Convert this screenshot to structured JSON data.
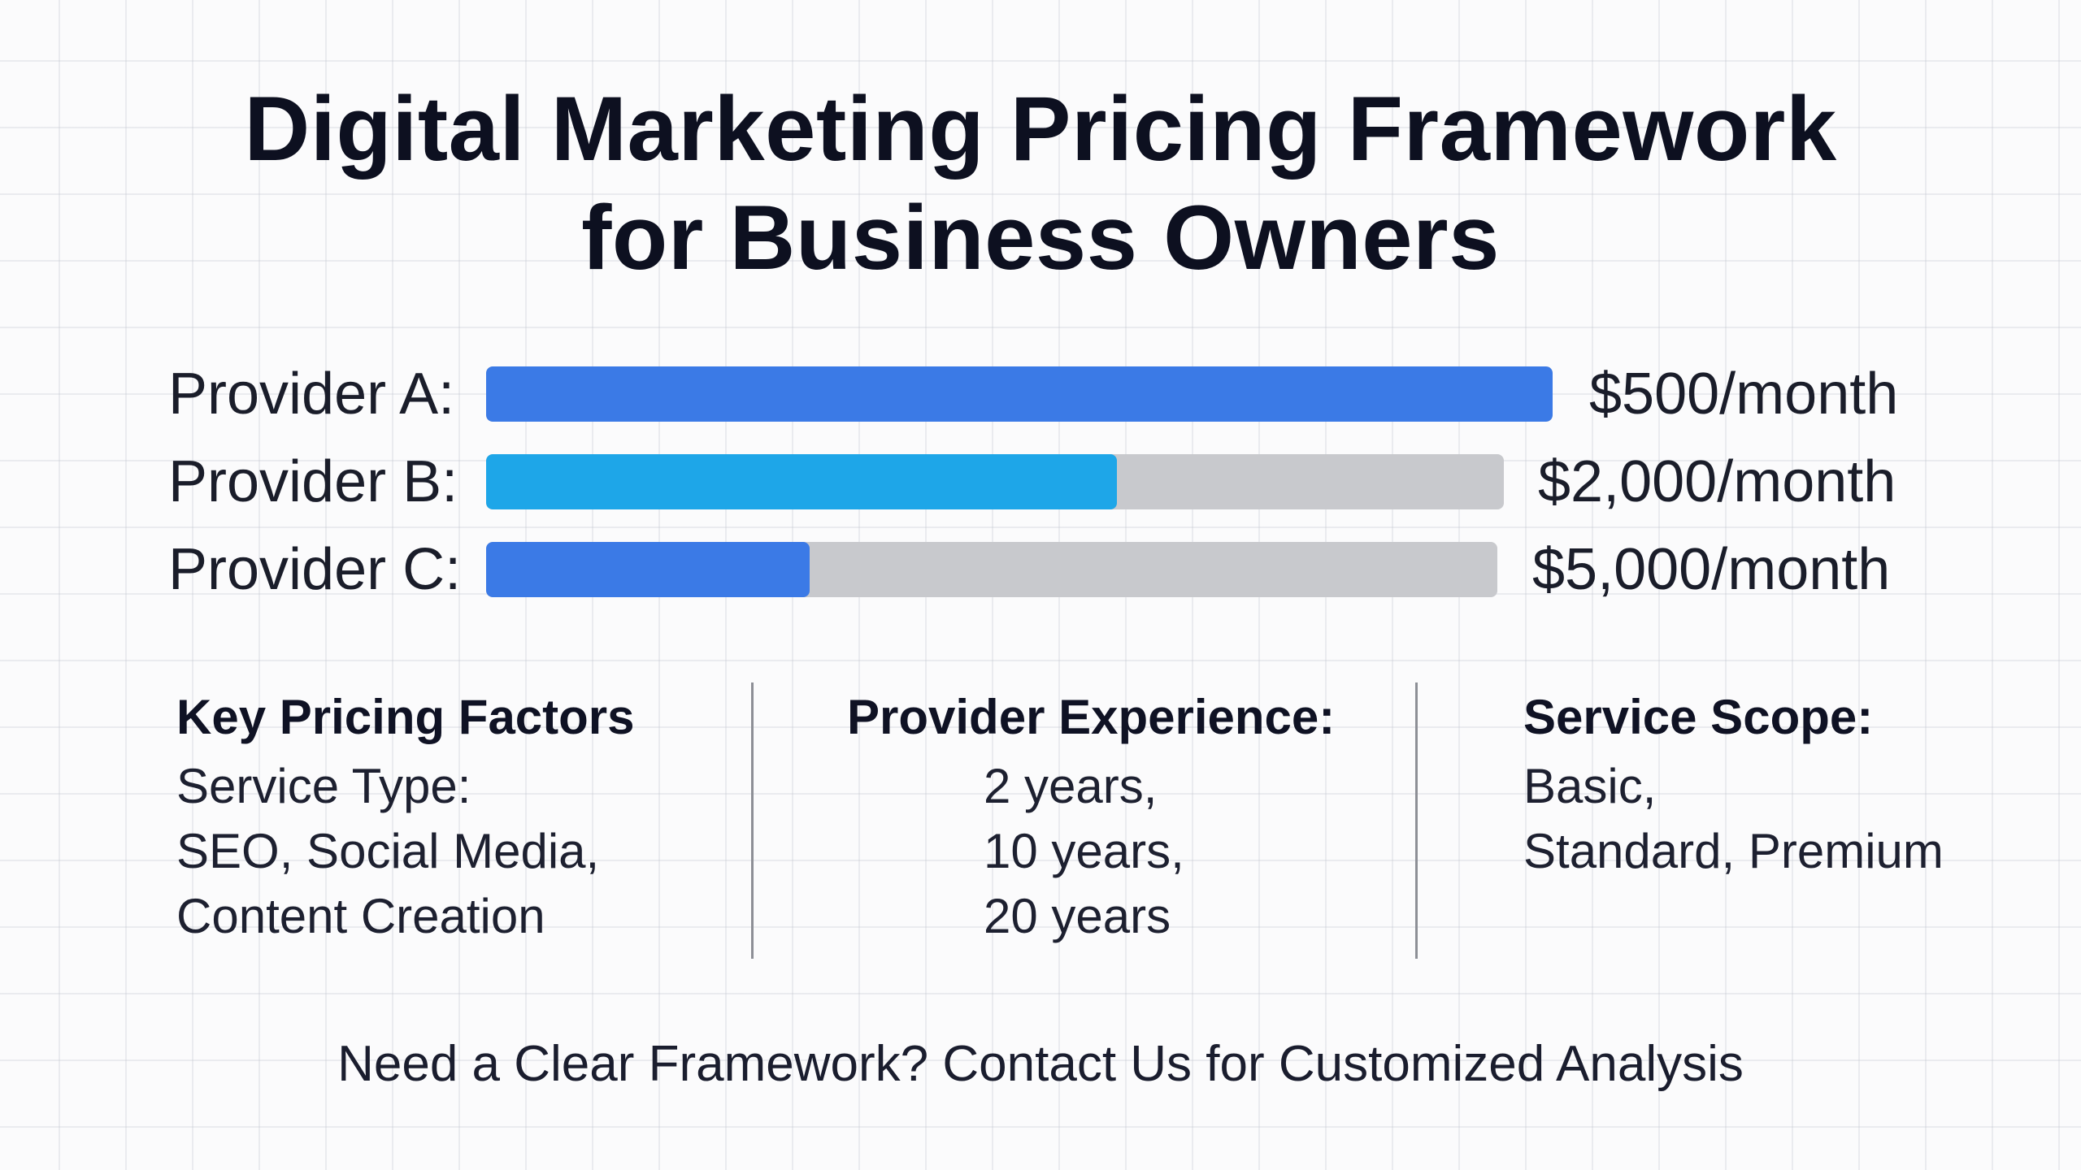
{
  "title": {
    "line1": "Digital Marketing Pricing Framework",
    "line2": "for Business Owners"
  },
  "chart_data": {
    "type": "bar",
    "orientation": "horizontal",
    "categories": [
      "Provider A:",
      "Provider B:",
      "Provider C:"
    ],
    "value_labels": [
      "$500/month",
      "$2,000/month",
      "$5,000/month"
    ],
    "fill_fraction": [
      1.0,
      0.62,
      0.32
    ],
    "fill_colors": [
      "#3b7ae6",
      "#1ea6e8",
      "#3b7ae6"
    ],
    "track_color": "#c8c9cd",
    "grid": true
  },
  "factors": [
    {
      "heading": "Key Pricing Factors",
      "lines": [
        "Service Type:",
        "SEO, Social Media,",
        "Content Creation"
      ]
    },
    {
      "heading": "Provider Experience:",
      "lines": [
        "2 years,",
        "10 years,",
        "20 years"
      ]
    },
    {
      "heading": "Service Scope:",
      "lines": [
        "Basic,",
        "Standard, Premium"
      ]
    }
  ],
  "footer": {
    "text": "Need a Clear Framework? Contact Us for Customized Analysis"
  }
}
